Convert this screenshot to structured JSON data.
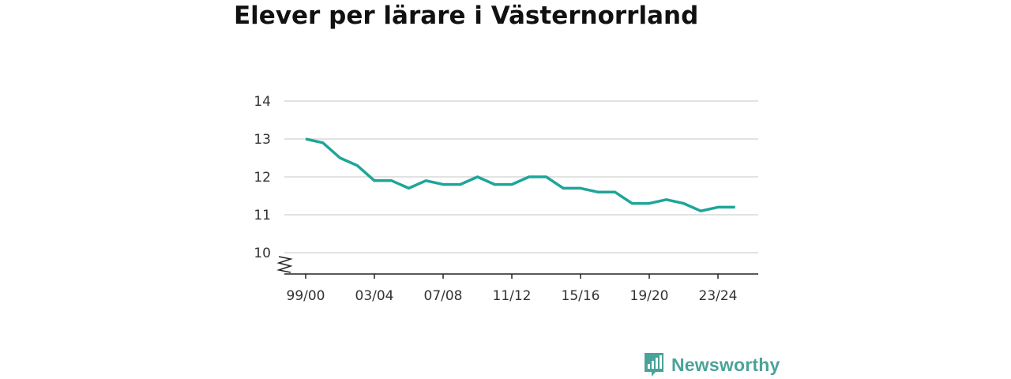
{
  "chart_data": {
    "type": "line",
    "title": "Elever per lärare i Västernorrland",
    "xlabel": "",
    "ylabel": "",
    "x_ticks": [
      "99/00",
      "03/04",
      "07/08",
      "11/12",
      "15/16",
      "19/20",
      "23/24"
    ],
    "y_ticks": [
      10,
      11,
      12,
      13,
      14
    ],
    "ylim": [
      10,
      14
    ],
    "axis_break": true,
    "grid": true,
    "legend": "none",
    "series": [
      {
        "values": [
          13.0,
          12.9,
          12.5,
          12.3,
          11.9,
          11.9,
          11.7,
          11.9,
          11.8,
          11.8,
          12.0,
          11.8,
          11.8,
          12.0,
          12.0,
          11.7,
          11.7,
          11.6,
          11.6,
          11.3,
          11.3,
          11.4,
          11.3,
          11.1,
          11.2,
          11.2
        ],
        "color": "#1fa59a"
      }
    ]
  },
  "brand": {
    "name": "Newsworthy",
    "color": "#4aa39a",
    "icon": "newsworthy-logo-icon"
  }
}
